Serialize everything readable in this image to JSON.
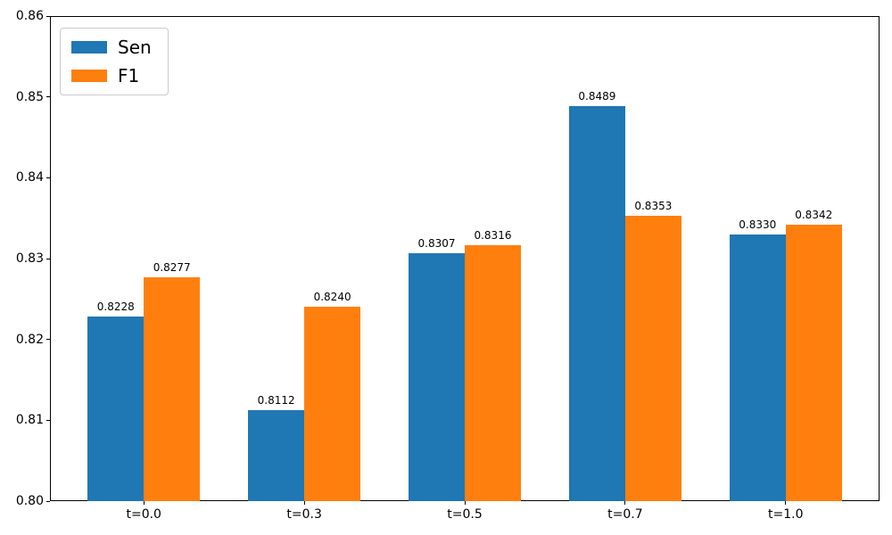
{
  "chart_data": {
    "type": "bar",
    "title": "",
    "xlabel": "",
    "ylabel": "",
    "categories": [
      "t=0.0",
      "t=0.3",
      "t=0.5",
      "t=0.7",
      "t=1.0"
    ],
    "series": [
      {
        "name": "Sen",
        "color": "#1f77b4",
        "values": [
          0.8228,
          0.8112,
          0.8307,
          0.8489,
          0.833
        ],
        "labels": [
          "0.8228",
          "0.8112",
          "0.8307",
          "0.8489",
          "0.8330"
        ]
      },
      {
        "name": "F1",
        "color": "#ff7f0e",
        "values": [
          0.8277,
          0.824,
          0.8316,
          0.8353,
          0.8342
        ],
        "labels": [
          "0.8277",
          "0.8240",
          "0.8316",
          "0.8353",
          "0.8342"
        ]
      }
    ],
    "ylim": [
      0.8,
      0.86
    ],
    "ytick_labels": [
      "0.80",
      "0.81",
      "0.82",
      "0.83",
      "0.84",
      "0.85",
      "0.86"
    ],
    "grid": false,
    "legend_position": "upper-left",
    "bar_group_width": 0.7,
    "colors": {
      "axis": "#000000",
      "background": "#ffffff",
      "legend_border": "#cccccc"
    }
  }
}
